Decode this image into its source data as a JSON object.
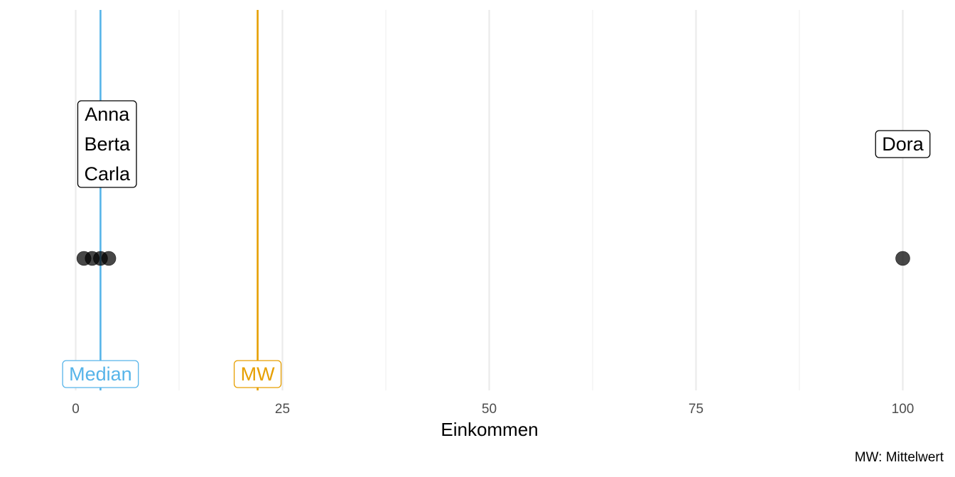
{
  "chart_data": {
    "type": "scatter",
    "title": "",
    "xlabel": "Einkommen",
    "ylabel": "",
    "caption": "MW: Mittelwert",
    "xlim": [
      0,
      100
    ],
    "xticks": [
      0,
      25,
      50,
      75,
      100
    ],
    "tick_labels": [
      "0",
      "25",
      "50",
      "75",
      "100"
    ],
    "grid": true,
    "points": [
      {
        "name": "Anna",
        "x": 1
      },
      {
        "name": "Berta",
        "x": 2
      },
      {
        "name": "Carla",
        "x": 3
      },
      {
        "name": "Carla",
        "x": 4
      },
      {
        "name": "Dora",
        "x": 100
      }
    ],
    "labels": [
      {
        "lines": [
          "Anna",
          "Berta",
          "Carla"
        ],
        "x": 3.8
      },
      {
        "lines": [
          "Dora"
        ],
        "x": 100
      }
    ],
    "reference_lines": [
      {
        "label": "Median",
        "x": 3,
        "color": "#56B4E9"
      },
      {
        "label": "MW",
        "x": 22,
        "color": "#E69F00"
      }
    ]
  }
}
